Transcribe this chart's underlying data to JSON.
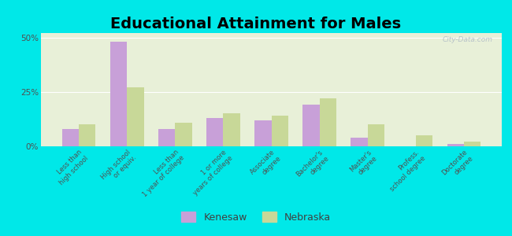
{
  "title": "Educational Attainment for Males",
  "categories": [
    "Less than\nhigh school",
    "High school\nor equiv.",
    "Less than\n1 year of college",
    "1 or more\nyears of college",
    "Associate\ndegree",
    "Bachelor's\ndegree",
    "Master's\ndegree",
    "Profess.\nschool degree",
    "Doctorate\ndegree"
  ],
  "kenesaw": [
    8,
    48,
    8,
    13,
    12,
    19,
    4,
    0,
    1
  ],
  "nebraska": [
    10,
    27,
    11,
    15,
    14,
    22,
    10,
    5,
    2
  ],
  "kenesaw_color": "#c8a0d8",
  "nebraska_color": "#c8d898",
  "background_color": "#00e8e8",
  "plot_bg_color": "#e8f0d8",
  "ylim": [
    0,
    52
  ],
  "yticks": [
    0,
    25,
    50
  ],
  "ytick_labels": [
    "0%",
    "25%",
    "50%"
  ],
  "watermark": "City-Data.com",
  "legend_kenesaw": "Kenesaw",
  "legend_nebraska": "Nebraska",
  "title_fontsize": 14,
  "bar_width": 0.35
}
